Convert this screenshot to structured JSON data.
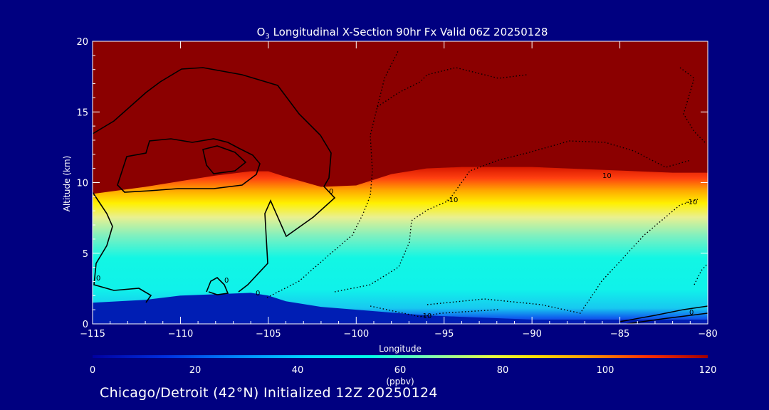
{
  "chart_data": {
    "type": "contour",
    "title": {
      "species": "O",
      "species_subscript": "3",
      "rest": " Longitudinal X-Section 90hr  Fx Valid 06Z 20250128"
    },
    "xlabel": "Longitude",
    "ylabel": "Altitude (km)",
    "xlim": [
      -115,
      -80
    ],
    "ylim": [
      0,
      20
    ],
    "xticks": [
      -115,
      -110,
      -105,
      -100,
      -95,
      -90,
      -85,
      -80
    ],
    "xtick_labels": [
      "−115",
      "−110",
      "−105",
      "−100",
      "−95",
      "−90",
      "−85",
      "−80"
    ],
    "yticks": [
      0,
      5,
      10,
      15,
      20
    ],
    "ytick_labels": [
      "0",
      "5",
      "10",
      "15",
      "20"
    ],
    "colorbar": {
      "ticks": [
        0,
        20,
        40,
        60,
        80,
        100,
        120
      ],
      "tick_labels": [
        "0",
        "20",
        "40",
        "60",
        "80",
        "100",
        "120"
      ],
      "unit": "(ppbv)",
      "range": [
        0,
        120
      ]
    },
    "ozone_layers": {
      "longitudes": [
        -115,
        -112,
        -110,
        -108,
        -106,
        -105,
        -104,
        -102,
        -100,
        -98,
        -96,
        -94,
        -92,
        -90,
        -88,
        -86,
        -84,
        -82,
        -80
      ],
      "surface_km": [
        1.5,
        1.7,
        2.0,
        2.1,
        2.2,
        2.0,
        1.6,
        1.2,
        1.0,
        0.8,
        0.6,
        0.5,
        0.4,
        0.3,
        0.3,
        0.3,
        0.3,
        0.3,
        0.3
      ],
      "tropopause_km": [
        9.2,
        9.7,
        10.1,
        10.5,
        10.8,
        10.8,
        10.4,
        9.7,
        9.8,
        10.6,
        11.0,
        11.1,
        11.1,
        11.1,
        11.0,
        10.9,
        10.8,
        10.7,
        10.7
      ]
    },
    "contour_labels": [
      "0",
      "0",
      "0",
      "0",
      "-10",
      "-10",
      "10",
      "-10",
      "0"
    ]
  },
  "footer": "Chicago/Detroit (42°N) Initialized 12Z 20250124"
}
